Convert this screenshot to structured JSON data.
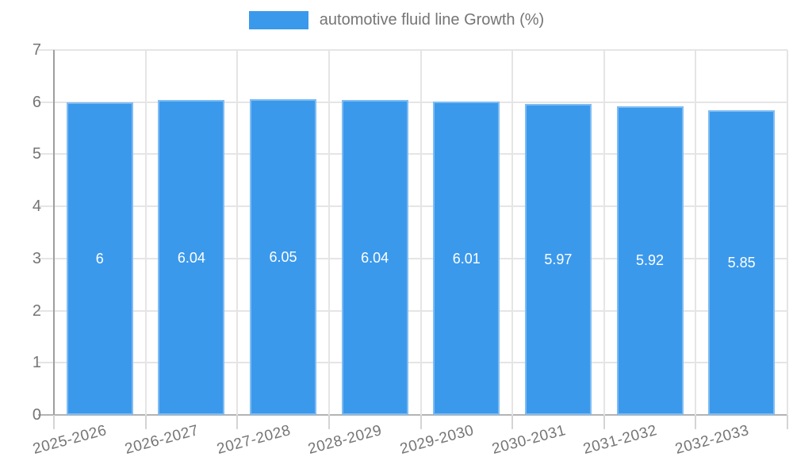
{
  "legend": {
    "label": "automotive fluid line Growth (%)"
  },
  "colors": {
    "bar": "#3b99ec",
    "bar_edge": "rgba(255,255,255,0.35)",
    "gridline": "#e5e5e5",
    "baseline": "#b3b3b3",
    "axis_line": "#9e9e9e",
    "tick": "#d4d4d4",
    "axis_text": "#757575",
    "value_text": "#ffffff",
    "background": "#ffffff"
  },
  "chart_data": {
    "type": "bar",
    "title": "automotive fluid line Growth (%)",
    "categories": [
      "2025-2026",
      "2026-2027",
      "2027-2028",
      "2028-2029",
      "2029-2030",
      "2030-2031",
      "2031-2032",
      "2032-2033"
    ],
    "series": [
      {
        "name": "automotive fluid line Growth (%)",
        "values": [
          6,
          6.04,
          6.05,
          6.04,
          6.01,
          5.97,
          5.92,
          5.85
        ],
        "value_labels": [
          "6",
          "6.04",
          "6.05",
          "6.04",
          "6.01",
          "5.97",
          "5.92",
          "5.85"
        ]
      }
    ],
    "xlabel": "",
    "ylabel": "",
    "ylim": [
      0,
      7
    ],
    "yticks": [
      0,
      1,
      2,
      3,
      4,
      5,
      6,
      7
    ],
    "grid": true,
    "legend_position": "top",
    "value_labels_position": "center-inside",
    "x_tick_label_rotation_deg": -15
  }
}
